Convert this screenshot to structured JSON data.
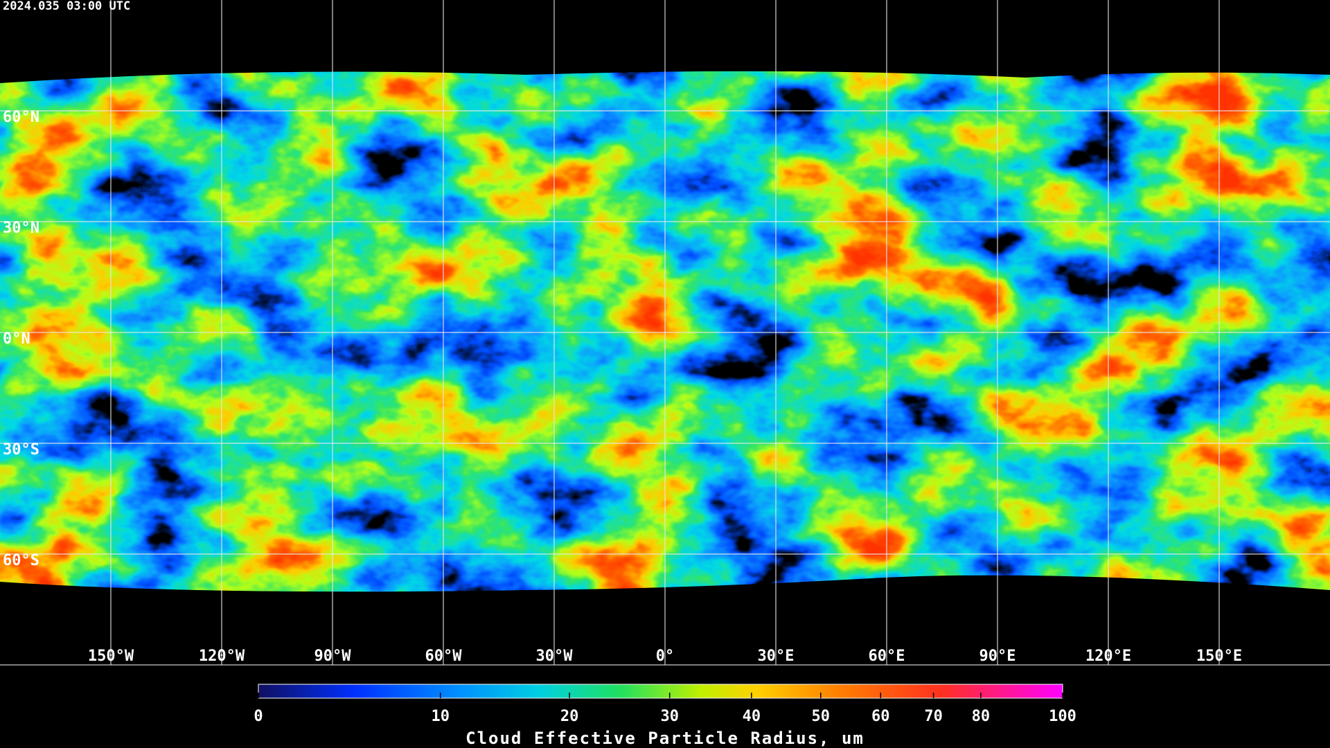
{
  "title": "2024.035 03:00 UTC",
  "map": {
    "lon_ticks": [
      {
        "value": -150,
        "label": "150°W"
      },
      {
        "value": -120,
        "label": "120°W"
      },
      {
        "value": -90,
        "label": "90°W"
      },
      {
        "value": -60,
        "label": "60°W"
      },
      {
        "value": -30,
        "label": "30°W"
      },
      {
        "value": 0,
        "label": "0°"
      },
      {
        "value": 30,
        "label": "30°E"
      },
      {
        "value": 60,
        "label": "60°E"
      },
      {
        "value": 90,
        "label": "90°E"
      },
      {
        "value": 120,
        "label": "120°E"
      },
      {
        "value": 150,
        "label": "150°E"
      }
    ],
    "lat_ticks": [
      {
        "value": 60,
        "label": "60°N"
      },
      {
        "value": 30,
        "label": "30°N"
      },
      {
        "value": 0,
        "label": "0°N"
      },
      {
        "value": -30,
        "label": "30°S"
      },
      {
        "value": -60,
        "label": "60°S"
      }
    ]
  },
  "colorbar": {
    "label": "Cloud Effective Particle Radius, um",
    "range": [
      0,
      100
    ],
    "ticks": [
      0,
      10,
      20,
      30,
      40,
      50,
      60,
      70,
      80,
      100
    ]
  }
}
